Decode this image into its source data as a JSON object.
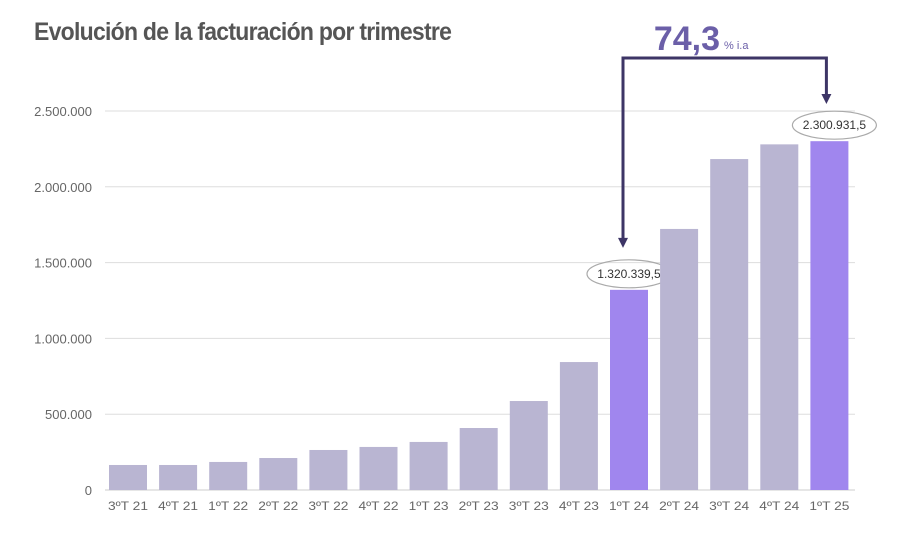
{
  "chart_data": {
    "type": "bar",
    "title": "Evolución de la facturación por trimestre",
    "categories": [
      "3ºT 21",
      "4ºT 21",
      "1ºT 22",
      "2ºT 22",
      "3ºT 22",
      "4ºT 22",
      "1ºT 23",
      "2ºT 23",
      "3ºT 23",
      "4ºT 23",
      "1ºT 24",
      "2ºT 24",
      "3ºT 24",
      "4ºT 24",
      "1ºT 25"
    ],
    "values": [
      165000,
      165000,
      185000,
      211000,
      264000,
      284000,
      317000,
      409000,
      587000,
      844000,
      1320339.5,
      1722000,
      2183000,
      2280000,
      2300931.5
    ],
    "highlighted": [
      "1ºT 24",
      "1ºT 25"
    ],
    "data_labels": {
      "1ºT 24": "1.320.339,5",
      "1ºT 25": "2.300.931,5"
    },
    "yticks": [
      "0",
      "500.000",
      "1.000.000",
      "1.500.000",
      "2.000.000",
      "2.500.000"
    ],
    "ytick_values": [
      0,
      500000,
      1000000,
      1500000,
      2000000,
      2500000
    ],
    "ylim": [
      0,
      2500000
    ],
    "grid": true,
    "annotation": {
      "value": "74,3",
      "unit": "% i.a",
      "from": "1ºT 24",
      "to": "1ºT 25"
    },
    "colors": {
      "bar": "#b9b5d2",
      "highlight": "#a086ee",
      "arrow": "#3d3566",
      "annotation": "#6b5fa8",
      "grid": "#dddddd",
      "text": "#555555"
    }
  }
}
